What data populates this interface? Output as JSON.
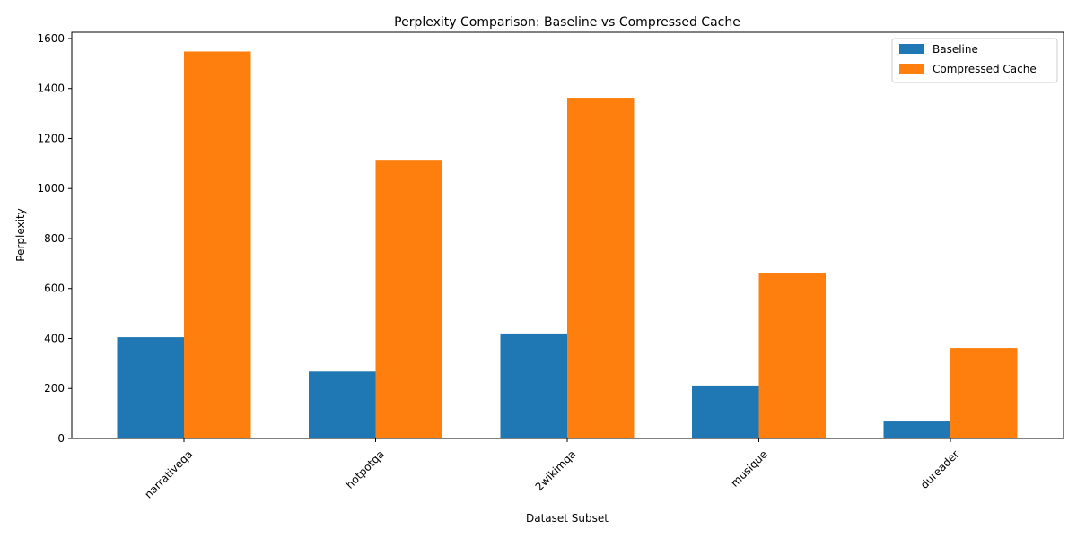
{
  "chart_data": {
    "type": "bar",
    "title": "Perplexity Comparison: Baseline vs Compressed Cache",
    "xlabel": "Dataset Subset",
    "ylabel": "Perplexity",
    "categories": [
      "narrativeqa",
      "hotpotqa",
      "2wikimqa",
      "musique",
      "dureader"
    ],
    "series": [
      {
        "name": "Baseline",
        "color": "#1f77b4",
        "values": [
          405,
          268,
          420,
          212,
          68
        ]
      },
      {
        "name": "Compressed Cache",
        "color": "#ff7f0e",
        "values": [
          1548,
          1115,
          1363,
          663,
          362
        ]
      }
    ],
    "ylim": [
      0,
      1625
    ],
    "yticks": [
      0,
      200,
      400,
      600,
      800,
      1000,
      1200,
      1400,
      1600
    ],
    "ytick_labels": [
      "0",
      "200",
      "400",
      "600",
      "800",
      "1000",
      "1200",
      "1400",
      "1600"
    ],
    "legend_position": "top-right",
    "grid": false,
    "xtick_rotation": 45
  }
}
